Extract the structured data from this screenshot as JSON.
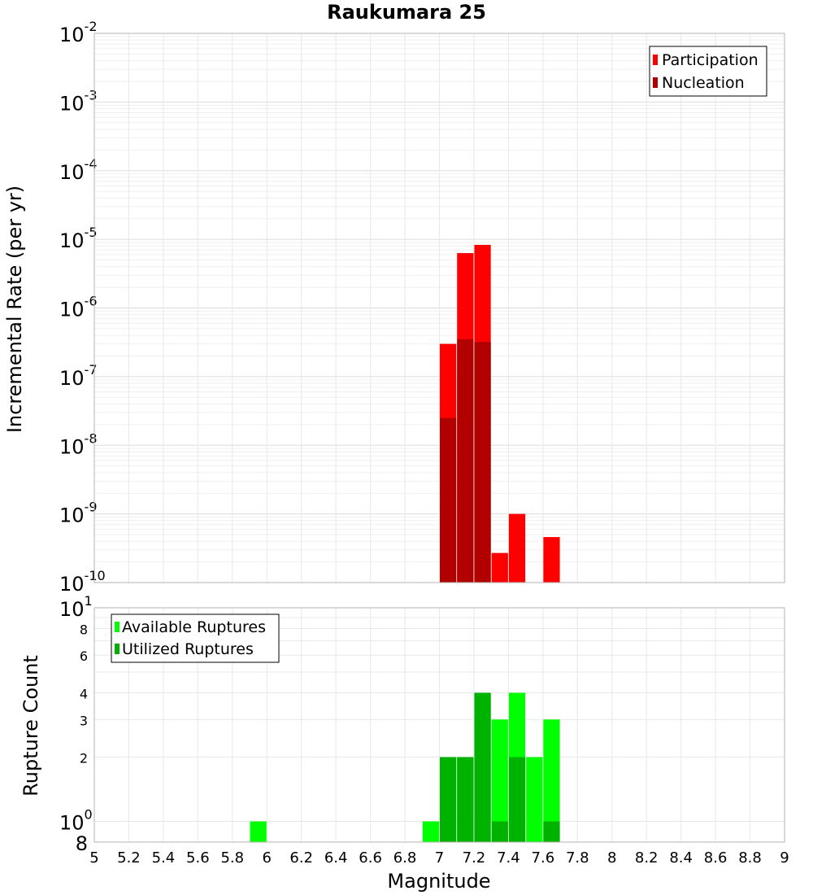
{
  "chart_data": [
    {
      "type": "bar",
      "title": "Raukumara 25",
      "ylabel": "Incremental Rate (per yr)",
      "xlabel": "",
      "xlim": [
        5,
        9
      ],
      "ylim": [
        1e-10,
        0.01
      ],
      "yscale": "log",
      "grid": true,
      "legend_position": "top-right",
      "ytick_exponents": [
        "-2",
        "-3",
        "-4",
        "-5",
        "-6",
        "-7",
        "-8",
        "-9",
        "-10"
      ],
      "ytick_base": "10",
      "series": [
        {
          "name": "Participation",
          "color": "#ff0000",
          "x": [
            7.0,
            7.1,
            7.2,
            7.3,
            7.4,
            7.6
          ],
          "values": [
            3e-07,
            6.3e-06,
            8.3e-06,
            2.7e-10,
            1e-09,
            4.6e-10
          ]
        },
        {
          "name": "Nucleation",
          "color": "#b20000",
          "x": [
            7.0,
            7.1,
            7.2
          ],
          "values": [
            2.5e-08,
            3.5e-07,
            3.2e-07
          ]
        }
      ]
    },
    {
      "type": "bar",
      "title": "",
      "ylabel": "Rupture Count",
      "xlabel": "Magnitude",
      "xlim": [
        5,
        9
      ],
      "ylim": [
        0.8,
        10
      ],
      "yscale": "log",
      "grid": true,
      "legend_position": "top-left",
      "xtick_labels": [
        "5",
        "5.2",
        "5.4",
        "5.6",
        "5.8",
        "6",
        "6.2",
        "6.4",
        "6.6",
        "6.8",
        "7",
        "7.2",
        "7.4",
        "7.6",
        "7.8",
        "8",
        "8.2",
        "8.4",
        "8.6",
        "8.8",
        "9"
      ],
      "ytick_labels": [
        "8",
        "6",
        "4",
        "3",
        "2"
      ],
      "ytick_base": "10",
      "ytick_top_exp": "1",
      "ytick_bottom_exp": "0",
      "ytick_bottom_label": "8",
      "series": [
        {
          "name": "Available Ruptures",
          "color": "#00ff00",
          "x": [
            5.9,
            6.9,
            7.0,
            7.1,
            7.2,
            7.3,
            7.4,
            7.5,
            7.6
          ],
          "values": [
            1,
            1,
            2,
            2,
            4,
            3,
            4,
            2,
            3
          ]
        },
        {
          "name": "Utilized Ruptures",
          "color": "#00b200",
          "x": [
            7.0,
            7.1,
            7.2,
            7.3,
            7.4,
            7.6
          ],
          "values": [
            2,
            2,
            4,
            1,
            2,
            1
          ]
        }
      ]
    }
  ]
}
